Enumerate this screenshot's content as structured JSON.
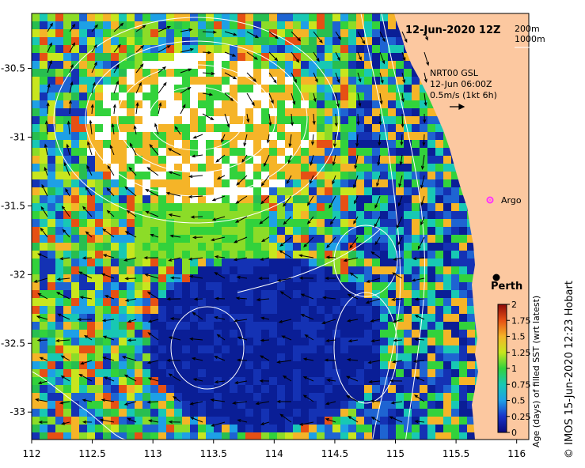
{
  "title": "12-Jun-2020 12Z",
  "contour_legend": [
    "200m",
    "1000m"
  ],
  "current_info": {
    "model": "NRT00 GSL",
    "time": "12-Jun 06:00Z",
    "scale": "0.5m/s (1kt 6h)"
  },
  "places": {
    "argo": "Argo",
    "city": "Perth"
  },
  "colorbar": {
    "label": "Age (days) of filled SST (wrt latest)",
    "ticks": [
      "2",
      "1.75",
      "1.5",
      "1.25",
      "1",
      "0.75",
      "0.5",
      "0.25",
      "0"
    ],
    "min": 0,
    "max": 2
  },
  "credit": "© IMOS 15-Jun-2020 12:23 Hobart",
  "axes": {
    "x_ticks": [
      "112",
      "112.5",
      "113",
      "113.5",
      "114",
      "114.5",
      "115",
      "115.5",
      "116"
    ],
    "y_ticks": [
      "-30.5",
      "-31",
      "-31.5",
      "-32",
      "-32.5",
      "-33"
    ],
    "lon_range": [
      112,
      116.1
    ],
    "lat_range": [
      -33.2,
      -30.1
    ]
  },
  "colors": {
    "land": "#fcc8a0",
    "deep_blue": "#0a1e96",
    "marker_argo": "#ff33ff"
  }
}
